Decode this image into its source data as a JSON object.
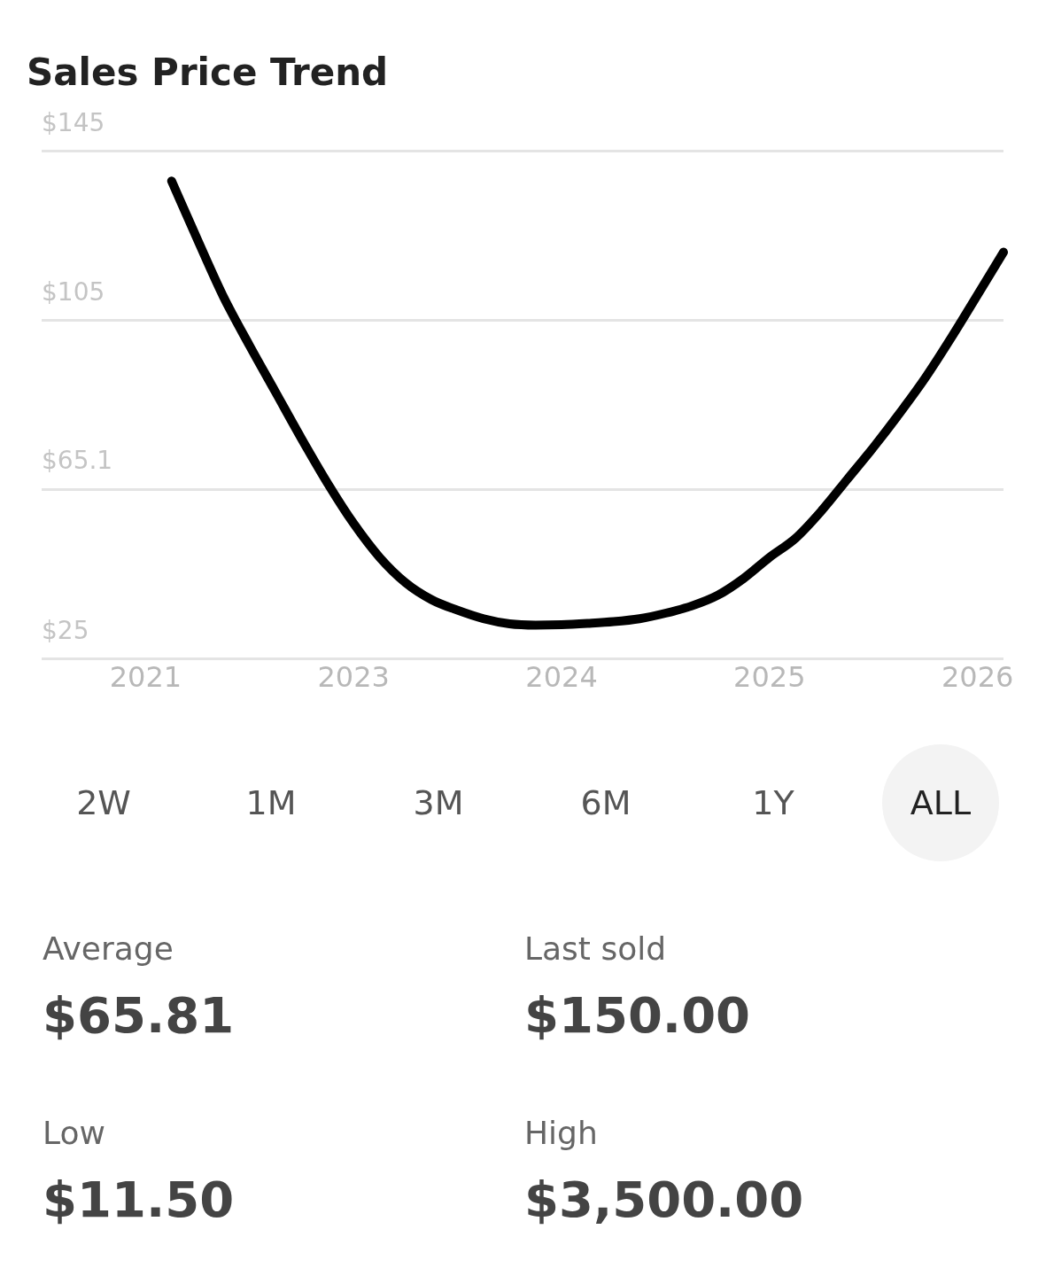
{
  "chart_data": {
    "type": "line",
    "title": "Sales Price Trend",
    "categories": [
      null,
      null,
      null,
      null,
      "2021",
      null,
      null,
      null,
      null,
      null,
      null,
      null,
      "2023",
      null,
      null,
      null,
      null,
      null,
      null,
      null,
      "2024",
      null,
      null,
      null,
      null,
      null,
      null,
      null,
      "2025",
      null,
      null,
      null,
      null,
      null,
      null,
      null,
      "2026",
      null
    ],
    "series": [
      {
        "color": "#000000",
        "values": [
          null,
          null,
          null,
          null,
          null,
          137.9,
          124,
          110.5,
          99,
          88,
          77,
          66.5,
          57,
          49,
          43,
          39,
          36.5,
          34.5,
          33.3,
          33,
          33.1,
          33.4,
          33.8,
          34.5,
          35.8,
          37.5,
          40,
          44,
          49,
          53.5,
          60,
          67.5,
          75,
          83,
          91.5,
          101,
          111,
          121.1
        ]
      }
    ],
    "ylim": [
      25,
      145
    ],
    "yticks": [
      {
        "value": 25,
        "label": "$25"
      },
      {
        "value": 65.1,
        "label": "$65.1"
      },
      {
        "value": 105,
        "label": "$105"
      },
      {
        "value": 145,
        "label": "$145"
      }
    ],
    "grid": "y",
    "legend": false,
    "annotations": [
      "2W",
      "1M",
      "3M",
      "6M",
      "1Y",
      "ALL",
      "Average",
      "$65.81",
      "Last sold",
      "$150.00",
      "Low",
      "$11.50",
      "High",
      "$3,500.00"
    ]
  }
}
